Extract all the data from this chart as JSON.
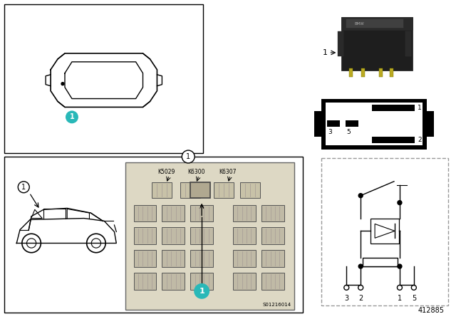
{
  "bg_color": "#ffffff",
  "cyan_color": "#29b8b8",
  "footnote": "412885",
  "panel_number": "S01216014",
  "k_labels": [
    "K5029",
    "K6300",
    "K6307"
  ],
  "pin_labels": [
    "3",
    "5",
    "1",
    "2"
  ],
  "schematic_pin_labels": [
    "3",
    "2",
    "1",
    "5"
  ]
}
